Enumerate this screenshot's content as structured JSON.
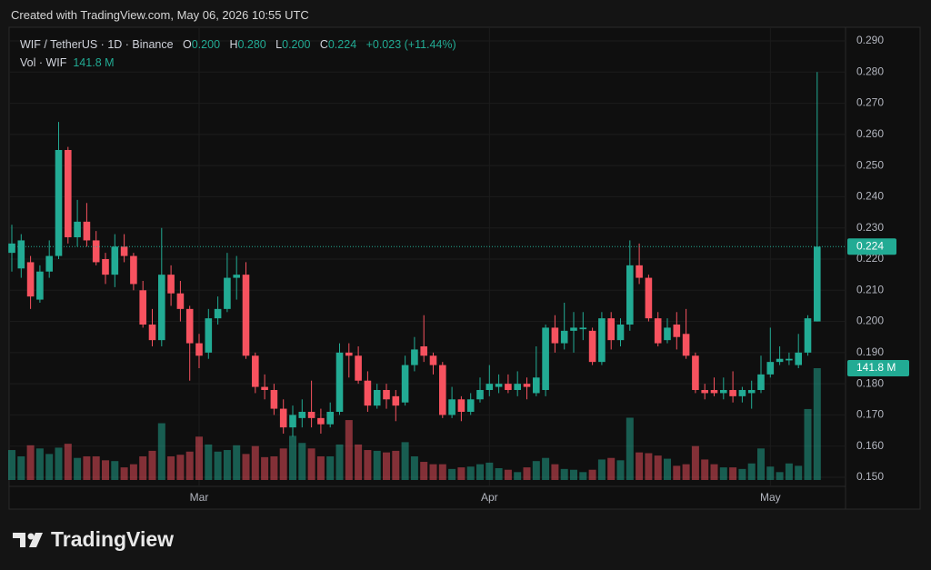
{
  "banner": "Created with TradingView.com, May 06, 2026 10:55 UTC",
  "footer": {
    "brand": "TradingView"
  },
  "chart_data": {
    "type": "candlestick",
    "symbol": "WIF / TetherUS · 1D · Binance",
    "legend": {
      "open_label": "O",
      "open": "0.200",
      "high_label": "H",
      "high": "0.280",
      "low_label": "L",
      "low": "0.200",
      "close_label": "C",
      "close": "0.224",
      "change": "+0.023 (+11.44%)",
      "volume_label": "Vol · WIF",
      "volume": "141.8 M"
    },
    "categories": [
      null,
      null,
      null,
      null,
      null,
      null,
      null,
      null,
      null,
      null,
      null,
      null,
      null,
      null,
      null,
      null,
      null,
      null,
      null,
      null,
      "Mar",
      null,
      null,
      null,
      null,
      null,
      null,
      null,
      null,
      null,
      null,
      null,
      null,
      null,
      null,
      null,
      null,
      null,
      null,
      null,
      null,
      null,
      null,
      null,
      null,
      null,
      null,
      null,
      null,
      null,
      null,
      "Apr",
      null,
      null,
      null,
      null,
      null,
      null,
      null,
      null,
      null,
      null,
      null,
      null,
      null,
      null,
      null,
      null,
      null,
      null,
      null,
      null,
      null,
      null,
      null,
      null,
      null,
      null,
      null,
      null,
      null,
      "May",
      null,
      null,
      null,
      null,
      null
    ],
    "open": [
      0.222,
      0.217,
      0.219,
      0.207,
      0.216,
      0.221,
      0.255,
      0.227,
      0.232,
      0.226,
      0.22,
      0.215,
      0.224,
      0.221,
      0.21,
      0.199,
      0.194,
      0.215,
      0.209,
      0.204,
      0.193,
      0.19,
      0.201,
      0.204,
      0.214,
      0.215,
      0.189,
      0.179,
      0.178,
      0.172,
      0.166,
      0.169,
      0.171,
      0.169,
      0.167,
      0.171,
      0.19,
      0.189,
      0.181,
      0.173,
      0.178,
      0.176,
      0.174,
      0.186,
      0.192,
      0.189,
      0.186,
      0.17,
      0.175,
      0.171,
      0.175,
      0.178,
      0.179,
      0.18,
      0.178,
      0.18,
      0.177,
      0.178,
      0.198,
      0.193,
      0.197,
      0.1975,
      0.197,
      0.187,
      0.201,
      0.194,
      0.199,
      0.218,
      0.214,
      0.201,
      0.194,
      0.199,
      0.196,
      0.189,
      0.178,
      0.178,
      0.177,
      0.178,
      0.176,
      0.177,
      0.178,
      0.183,
      0.187,
      0.1875,
      0.186,
      0.19,
      0.2
    ],
    "high": [
      0.231,
      0.228,
      0.221,
      0.218,
      0.226,
      0.264,
      0.256,
      0.239,
      0.238,
      0.229,
      0.222,
      0.228,
      0.228,
      0.222,
      0.213,
      0.204,
      0.23,
      0.218,
      0.213,
      0.205,
      0.196,
      0.204,
      0.208,
      0.222,
      0.221,
      0.219,
      0.19,
      0.183,
      0.18,
      0.175,
      0.173,
      0.175,
      0.181,
      0.172,
      0.174,
      0.193,
      0.193,
      0.192,
      0.184,
      0.18,
      0.18,
      0.178,
      0.189,
      0.195,
      0.202,
      0.19,
      0.187,
      0.179,
      0.176,
      0.177,
      0.182,
      0.186,
      0.183,
      0.183,
      0.184,
      0.182,
      0.192,
      0.199,
      0.202,
      0.206,
      0.203,
      0.203,
      0.198,
      0.203,
      0.203,
      0.201,
      0.226,
      0.225,
      0.215,
      0.203,
      0.201,
      0.203,
      0.204,
      0.19,
      0.18,
      0.182,
      0.182,
      0.184,
      0.179,
      0.181,
      0.189,
      0.198,
      0.192,
      0.19,
      0.196,
      0.202,
      0.28
    ],
    "low": [
      0.216,
      0.214,
      0.204,
      0.206,
      0.214,
      0.22,
      0.225,
      0.224,
      0.224,
      0.218,
      0.212,
      0.211,
      0.219,
      0.21,
      0.198,
      0.192,
      0.192,
      0.205,
      0.2,
      0.181,
      0.185,
      0.188,
      0.199,
      0.203,
      0.207,
      0.188,
      0.177,
      0.175,
      0.17,
      0.164,
      0.163,
      0.166,
      0.166,
      0.164,
      0.166,
      0.17,
      0.182,
      0.18,
      0.171,
      0.172,
      0.172,
      0.168,
      0.173,
      0.184,
      0.187,
      0.183,
      0.169,
      0.169,
      0.168,
      0.17,
      0.174,
      0.176,
      0.177,
      0.177,
      0.176,
      0.175,
      0.176,
      0.176,
      0.19,
      0.191,
      0.19,
      0.194,
      0.186,
      0.186,
      0.191,
      0.192,
      0.197,
      0.212,
      0.2,
      0.192,
      0.193,
      0.191,
      0.188,
      0.177,
      0.175,
      0.176,
      0.175,
      0.174,
      0.174,
      0.172,
      0.177,
      0.182,
      0.186,
      0.186,
      0.185,
      0.189,
      0.2
    ],
    "close": [
      0.225,
      0.226,
      0.208,
      0.216,
      0.221,
      0.255,
      0.227,
      0.232,
      0.226,
      0.219,
      0.215,
      0.224,
      0.221,
      0.212,
      0.199,
      0.194,
      0.215,
      0.209,
      0.204,
      0.193,
      0.189,
      0.201,
      0.204,
      0.214,
      0.215,
      0.189,
      0.179,
      0.178,
      0.172,
      0.166,
      0.17,
      0.171,
      0.169,
      0.167,
      0.171,
      0.19,
      0.189,
      0.181,
      0.173,
      0.178,
      0.175,
      0.173,
      0.186,
      0.191,
      0.189,
      0.186,
      0.17,
      0.175,
      0.171,
      0.175,
      0.178,
      0.18,
      0.18,
      0.178,
      0.18,
      0.179,
      0.182,
      0.198,
      0.193,
      0.197,
      0.198,
      0.198,
      0.187,
      0.201,
      0.194,
      0.199,
      0.218,
      0.214,
      0.201,
      0.193,
      0.198,
      0.195,
      0.189,
      0.178,
      0.177,
      0.177,
      0.178,
      0.176,
      0.178,
      0.178,
      0.183,
      0.187,
      0.188,
      0.188,
      0.19,
      0.201,
      0.224
    ],
    "volume": [
      38,
      30,
      44,
      40,
      33,
      41,
      46,
      28,
      30,
      30,
      25,
      24,
      16,
      20,
      30,
      37,
      72,
      30,
      32,
      36,
      55,
      45,
      36,
      38,
      44,
      33,
      43,
      29,
      30,
      40,
      56,
      47,
      40,
      30,
      30,
      45,
      76,
      45,
      38,
      37,
      35,
      37,
      48,
      30,
      23,
      20,
      20,
      14,
      16,
      17,
      20,
      22,
      15,
      13,
      10,
      16,
      24,
      28,
      20,
      14,
      13,
      10,
      13,
      26,
      28,
      25,
      79,
      35,
      34,
      31,
      27,
      18,
      20,
      43,
      26,
      20,
      16,
      16,
      14,
      21,
      40,
      17,
      10,
      21,
      18,
      90,
      141.8
    ],
    "up_color": "#22ab94",
    "down_color": "#f7525f",
    "ylim": [
      0.15,
      0.29
    ],
    "yticks": [
      {
        "value": 0.15,
        "label": "0.150"
      },
      {
        "value": 0.16,
        "label": "0.160"
      },
      {
        "value": 0.17,
        "label": "0.170"
      },
      {
        "value": 0.18,
        "label": "0.180"
      },
      {
        "value": 0.19,
        "label": "0.190"
      },
      {
        "value": 0.2,
        "label": "0.200"
      },
      {
        "value": 0.21,
        "label": "0.210"
      },
      {
        "value": 0.22,
        "label": "0.220"
      },
      {
        "value": 0.23,
        "label": "0.230"
      },
      {
        "value": 0.24,
        "label": "0.240"
      },
      {
        "value": 0.25,
        "label": "0.250"
      },
      {
        "value": 0.26,
        "label": "0.260"
      },
      {
        "value": 0.27,
        "label": "0.270"
      },
      {
        "value": 0.28,
        "label": "0.280"
      },
      {
        "value": 0.29,
        "label": "0.290"
      }
    ],
    "grid": true
  }
}
